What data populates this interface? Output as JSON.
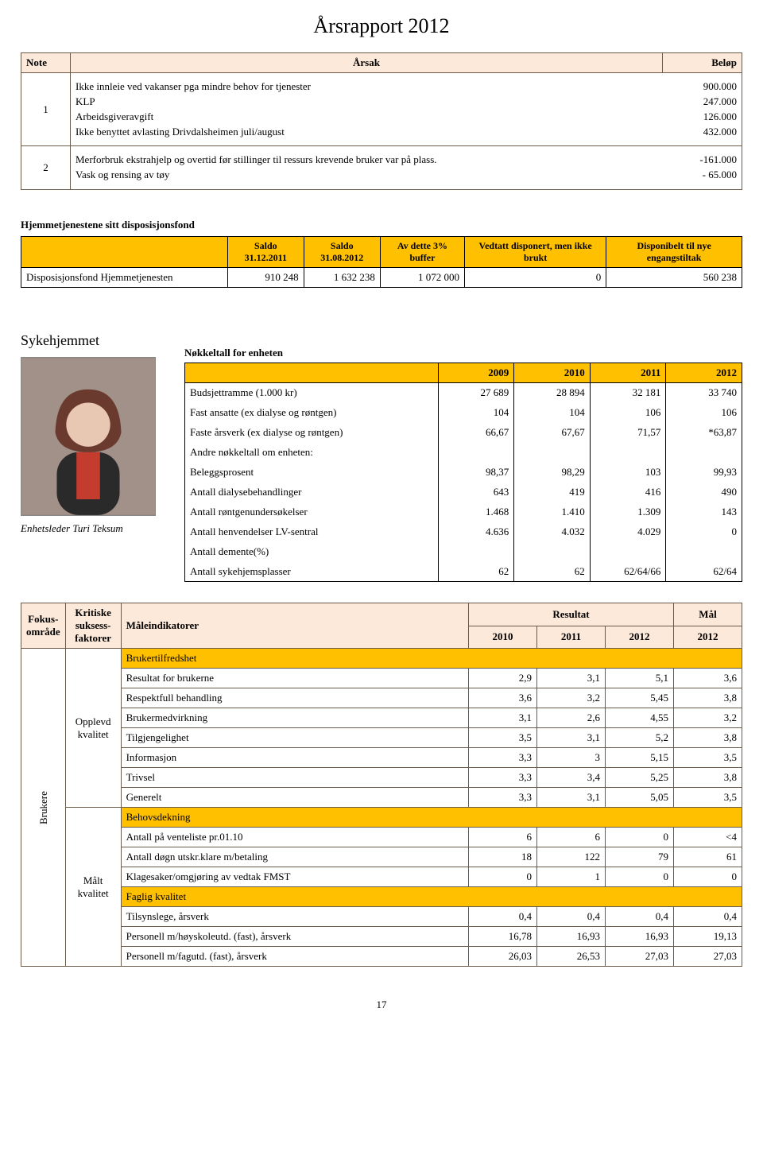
{
  "page": {
    "title": "Årsrapport 2012",
    "number": "17"
  },
  "table1": {
    "headers": {
      "note": "Note",
      "arsak": "Årsak",
      "belop": "Beløp"
    },
    "rows": [
      {
        "note": "1",
        "lines": [
          {
            "label": "Ikke innleie ved vakanser pga mindre behov for tjenester",
            "value": "900.000"
          },
          {
            "label": "KLP",
            "value": "247.000"
          },
          {
            "label": "Arbeidsgiveravgift",
            "value": "126.000"
          },
          {
            "label": "Ikke benyttet avlasting Drivdalsheimen  juli/august",
            "value": "432.000"
          }
        ]
      },
      {
        "note": "2",
        "lines": [
          {
            "label": "Merforbruk ekstrahjelp og overtid før stillinger til ressurs krevende bruker var på plass.",
            "value": "-161.000"
          },
          {
            "label": "Vask og rensing av tøy",
            "value": "- 65.000"
          }
        ]
      }
    ]
  },
  "disp": {
    "section_title": "Hjemmetjenestene sitt disposisjonsfond",
    "headers": [
      "",
      "Saldo 31.12.2011",
      "Saldo 31.08.2012",
      "Av dette 3% buffer",
      "Vedtatt disponert, men ikke brukt",
      "Disponibelt til nye engangstiltak"
    ],
    "row": {
      "label": "Disposisjonsfond Hjemmetjenesten",
      "values": [
        "910 248",
        "1 632 238",
        "1 072 000",
        "0",
        "560 238"
      ]
    }
  },
  "unit": {
    "name": "Sykehjemmet",
    "caption": "Enhetsleder Turi Teksum",
    "nk_title": "Nøkkeltall for enheten",
    "years": [
      "2009",
      "2010",
      "2011",
      "2012"
    ],
    "rows": [
      {
        "label": "Budsjettramme (1.000 kr)",
        "v": [
          "27 689",
          "28 894",
          "32 181",
          "33 740"
        ]
      },
      {
        "label": "Fast ansatte (ex dialyse og røntgen)",
        "v": [
          "104",
          "104",
          "106",
          "106"
        ]
      },
      {
        "label": "Faste årsverk  (ex dialyse og røntgen)",
        "v": [
          "66,67",
          "67,67",
          "71,57",
          "*63,87"
        ]
      },
      {
        "label": "Andre nøkkeltall om enheten:",
        "v": [
          "",
          "",
          "",
          ""
        ]
      },
      {
        "label": "Beleggsprosent",
        "v": [
          "98,37",
          "98,29",
          "103",
          "99,93"
        ]
      },
      {
        "label": "Antall dialysebehandlinger",
        "v": [
          "643",
          "419",
          "416",
          "490"
        ]
      },
      {
        "label": "Antall røntgenundersøkelser",
        "v": [
          "1.468",
          "1.410",
          "1.309",
          "143"
        ]
      },
      {
        "label": "Antall henvendelser LV-sentral",
        "v": [
          "4.636",
          "4.032",
          "4.029",
          "0"
        ]
      },
      {
        "label": "Antall demente(%)",
        "v": [
          "",
          "",
          "",
          ""
        ]
      },
      {
        "label": "Antall sykehjemsplasser",
        "v": [
          "62",
          "62",
          "62/64/66",
          "62/64"
        ]
      }
    ]
  },
  "focus": {
    "headers": {
      "fokus": "Fokus-område",
      "ksf": "Kritiske suksess-faktorer",
      "ind": "Måleindikatorer",
      "res": "Resultat",
      "mal": "Mål",
      "y2010": "2010",
      "y2011": "2011",
      "y2012r": "2012",
      "y2012m": "2012"
    },
    "fokus_label": "Brukere",
    "groups": [
      {
        "ksf": "Opplevd kvalitet",
        "cat": "Brukertilfredshet",
        "rows": [
          {
            "label": "Resultat for brukerne",
            "v": [
              "2,9",
              "3,1",
              "5,1",
              "3,6"
            ]
          },
          {
            "label": "Respektfull behandling",
            "v": [
              "3,6",
              "3,2",
              "5,45",
              "3,8"
            ]
          },
          {
            "label": "Brukermedvirkning",
            "v": [
              "3,1",
              "2,6",
              "4,55",
              "3,2"
            ]
          },
          {
            "label": "Tilgjengelighet",
            "v": [
              "3,5",
              "3,1",
              "5,2",
              "3,8"
            ]
          },
          {
            "label": "Informasjon",
            "v": [
              "3,3",
              "3",
              "5,15",
              "3,5"
            ]
          },
          {
            "label": "Trivsel",
            "v": [
              "3,3",
              "3,4",
              "5,25",
              "3,8"
            ]
          },
          {
            "label": "Generelt",
            "v": [
              "3,3",
              "3,1",
              "5,05",
              "3,5"
            ]
          }
        ]
      },
      {
        "ksf": "Målt kvalitet",
        "cat": "Behovsdekning",
        "rows": [
          {
            "label": "Antall på venteliste pr.01.10",
            "v": [
              "6",
              "6",
              "0",
              "<4"
            ]
          },
          {
            "label": "Antall døgn utskr.klare m/betaling",
            "v": [
              "18",
              "122",
              "79",
              "61"
            ]
          },
          {
            "label": "Klagesaker/omgjøring av vedtak FMST",
            "v": [
              "0",
              "1",
              "0",
              "0"
            ]
          }
        ],
        "cat2": "Faglig kvalitet",
        "rows2": [
          {
            "label": "Tilsynslege, årsverk",
            "v": [
              "0,4",
              "0,4",
              "0,4",
              "0,4"
            ]
          },
          {
            "label": "Personell m/høyskoleutd. (fast), årsverk",
            "v": [
              "16,78",
              "16,93",
              "16,93",
              "19,13"
            ]
          },
          {
            "label": "Personell m/fagutd. (fast), årsverk",
            "v": [
              "26,03",
              "26,53",
              "27,03",
              "27,03"
            ]
          }
        ]
      }
    ]
  },
  "colors": {
    "header_orange": "#ffc000",
    "header_peach": "#fde9d9",
    "border_brown": "#6a5a4a"
  }
}
